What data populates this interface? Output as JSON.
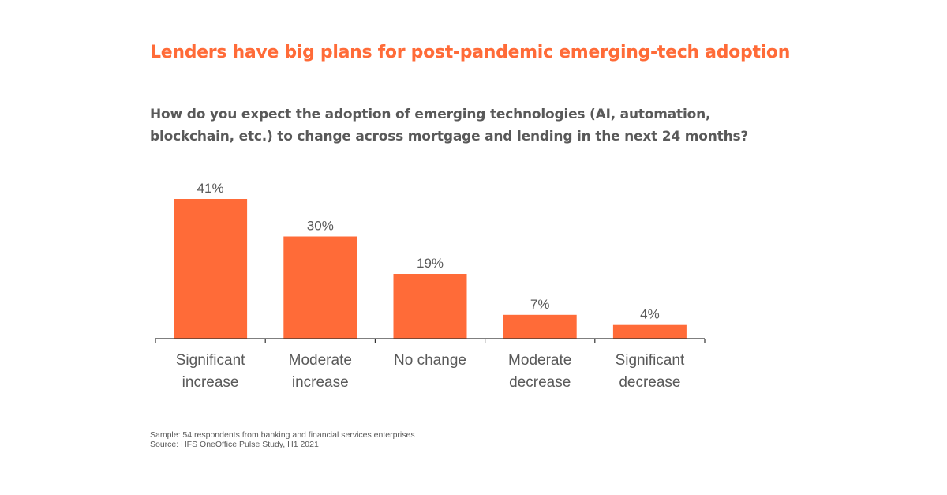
{
  "title": "Lenders have big plans for post-pandemic emerging-tech adoption",
  "question": {
    "line1": "How do you expect the adoption of emerging technologies (AI, automation,",
    "line2": "blockchain, etc.) to change across mortgage and lending in the next 24 months?"
  },
  "chart_data": {
    "type": "bar",
    "categories": [
      [
        "Significant",
        "increase"
      ],
      [
        "Moderate",
        "increase"
      ],
      [
        "No change"
      ],
      [
        "Moderate",
        "decrease"
      ],
      [
        "Significant",
        "decrease"
      ]
    ],
    "values": [
      41,
      30,
      19,
      7,
      4
    ],
    "value_labels": [
      "41%",
      "30%",
      "19%",
      "7%",
      "4%"
    ],
    "bar_color": "#ff6b38",
    "grid": false,
    "legend": "none"
  },
  "footer": {
    "sample": "Sample: 54 respondents from banking and financial services enterprises",
    "source": "Source: HFS OneOffice Pulse Study, H1 2021"
  }
}
